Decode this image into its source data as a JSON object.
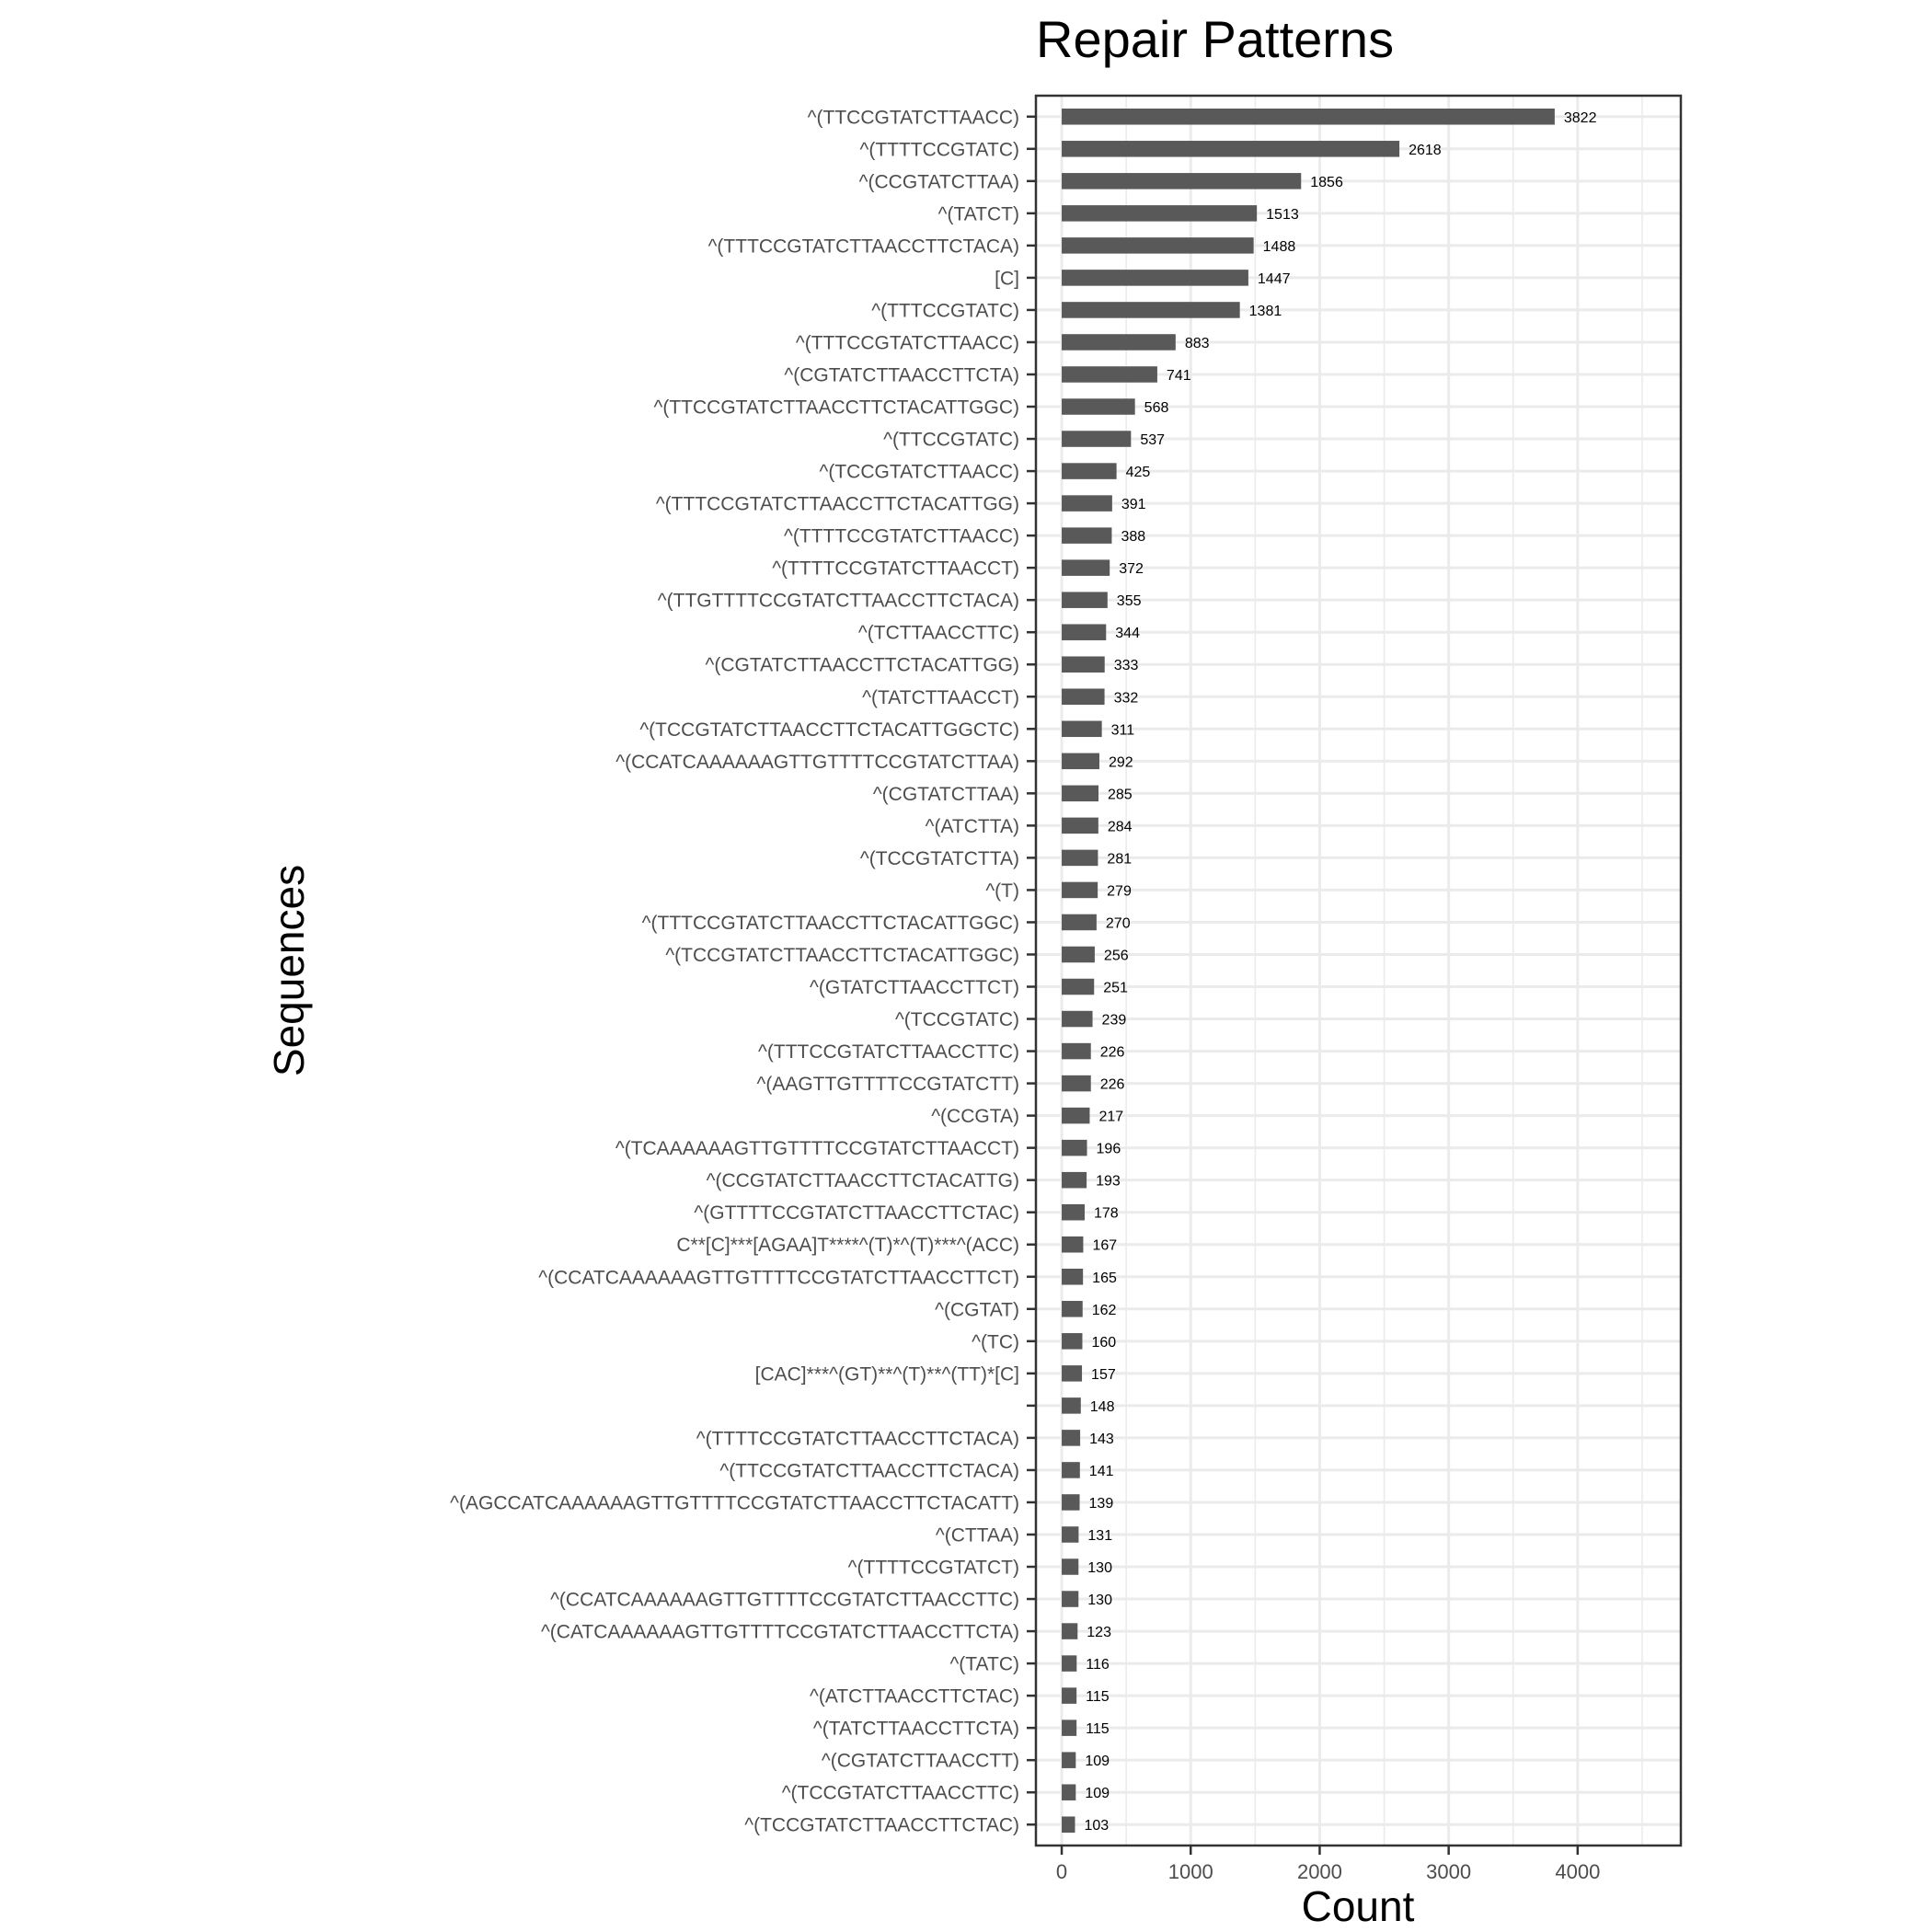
{
  "chart_data": {
    "type": "bar",
    "orientation": "horizontal",
    "title": "Repair Patterns",
    "xlabel": "Count",
    "ylabel": "Sequences",
    "xlim": [
      -200,
      4800
    ],
    "xticks": [
      0,
      1000,
      2000,
      3000,
      4000
    ],
    "grid": true,
    "bar_color": "#595959",
    "categories": [
      "^(TTCCGTATCTTAACC)",
      "^(TTTTCCGTATC)",
      "^(CCGTATCTTAA)",
      "^(TATCT)",
      "^(TTTCCGTATCTTAACCTTCTACA)",
      "[C]",
      "^(TTTCCGTATC)",
      "^(TTTCCGTATCTTAACC)",
      "^(CGTATCTTAACCTTCTA)",
      "^(TTCCGTATCTTAACCTTCTACATTGGC)",
      "^(TTCCGTATC)",
      "^(TCCGTATCTTAACC)",
      "^(TTTCCGTATCTTAACCTTCTACATTGG)",
      "^(TTTTCCGTATCTTAACC)",
      "^(TTTTCCGTATCTTAACCT)",
      "^(TTGTTTTCCGTATCTTAACCTTCTACA)",
      "^(TCTTAACCTTC)",
      "^(CGTATCTTAACCTTCTACATTGG)",
      "^(TATCTTAACCT)",
      "^(TCCGTATCTTAACCTTCTACATTGGCTC)",
      "^(CCATCAAAAAAGTTGTTTTCCGTATCTTAA)",
      "^(CGTATCTTAA)",
      "^(ATCTTA)",
      "^(TCCGTATCTTA)",
      "^(T)",
      "^(TTTCCGTATCTTAACCTTCTACATTGGC)",
      "^(TCCGTATCTTAACCTTCTACATTGGC)",
      "^(GTATCTTAACCTTCT)",
      "^(TCCGTATC)",
      "^(TTTCCGTATCTTAACCTTC)",
      "^(AAGTTGTTTTCCGTATCTT)",
      "^(CCGTA)",
      "^(TCAAAAAAGTTGTTTTCCGTATCTTAACCT)",
      "^(CCGTATCTTAACCTTCTACATTG)",
      "^(GTTTTCCGTATCTTAACCTTCTAC)",
      "C**[C]***[AGAA]T****^(T)*^(T)***^(ACC)",
      "^(CCATCAAAAAAGTTGTTTTCCGTATCTTAACCTTCT)",
      "^(CGTAT)",
      "^(TC)",
      "[CAC]***^(GT)**^(T)**^(TT)*[C]",
      "",
      "^(TTTTCCGTATCTTAACCTTCTACA)",
      "^(TTCCGTATCTTAACCTTCTACA)",
      "^(AGCCATCAAAAAAGTTGTTTTCCGTATCTTAACCTTCTACATT)",
      "^(CTTAA)",
      "^(TTTTCCGTATCT)",
      "^(CCATCAAAAAAGTTGTTTTCCGTATCTTAACCTTC)",
      "^(CATCAAAAAAGTTGTTTTCCGTATCTTAACCTTCTA)",
      "^(TATC)",
      "^(ATCTTAACCTTCTAC)",
      "^(TATCTTAACCTTCTA)",
      "^(CGTATCTTAACCTT)",
      "^(TCCGTATCTTAACCTTC)",
      "^(TCCGTATCTTAACCTTCTAC)"
    ],
    "values": [
      3822,
      2618,
      1856,
      1513,
      1488,
      1447,
      1381,
      883,
      741,
      568,
      537,
      425,
      391,
      388,
      372,
      355,
      344,
      333,
      332,
      311,
      292,
      285,
      284,
      281,
      279,
      270,
      256,
      251,
      239,
      226,
      226,
      217,
      196,
      193,
      178,
      167,
      165,
      162,
      160,
      157,
      148,
      143,
      141,
      139,
      131,
      130,
      130,
      123,
      116,
      115,
      115,
      109,
      109,
      103
    ]
  }
}
